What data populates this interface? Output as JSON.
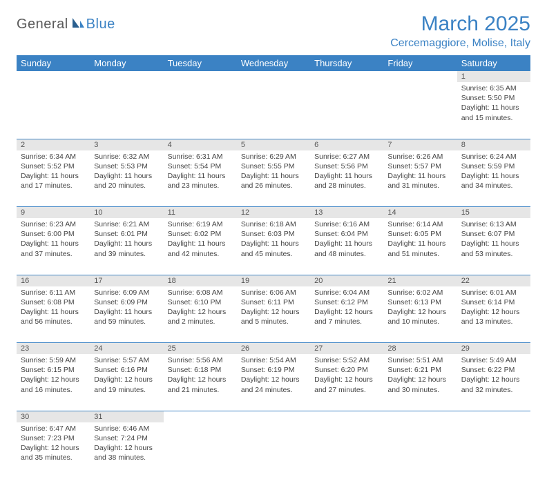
{
  "logo": {
    "text1": "General",
    "text2": "Blue"
  },
  "title": "March 2025",
  "location": "Cercemaggiore, Molise, Italy",
  "colors": {
    "accent": "#3b82c4",
    "header_bg": "#3b82c4",
    "header_text": "#ffffff",
    "daynum_bg": "#e6e6e6",
    "daynum_text": "#555555",
    "body_text": "#444444",
    "border": "#3b82c4",
    "background": "#ffffff"
  },
  "weekdays": [
    "Sunday",
    "Monday",
    "Tuesday",
    "Wednesday",
    "Thursday",
    "Friday",
    "Saturday"
  ],
  "weeks": [
    [
      null,
      null,
      null,
      null,
      null,
      null,
      {
        "n": "1",
        "sr": "Sunrise: 6:35 AM",
        "ss": "Sunset: 5:50 PM",
        "dl": "Daylight: 11 hours and 15 minutes."
      }
    ],
    [
      {
        "n": "2",
        "sr": "Sunrise: 6:34 AM",
        "ss": "Sunset: 5:52 PM",
        "dl": "Daylight: 11 hours and 17 minutes."
      },
      {
        "n": "3",
        "sr": "Sunrise: 6:32 AM",
        "ss": "Sunset: 5:53 PM",
        "dl": "Daylight: 11 hours and 20 minutes."
      },
      {
        "n": "4",
        "sr": "Sunrise: 6:31 AM",
        "ss": "Sunset: 5:54 PM",
        "dl": "Daylight: 11 hours and 23 minutes."
      },
      {
        "n": "5",
        "sr": "Sunrise: 6:29 AM",
        "ss": "Sunset: 5:55 PM",
        "dl": "Daylight: 11 hours and 26 minutes."
      },
      {
        "n": "6",
        "sr": "Sunrise: 6:27 AM",
        "ss": "Sunset: 5:56 PM",
        "dl": "Daylight: 11 hours and 28 minutes."
      },
      {
        "n": "7",
        "sr": "Sunrise: 6:26 AM",
        "ss": "Sunset: 5:57 PM",
        "dl": "Daylight: 11 hours and 31 minutes."
      },
      {
        "n": "8",
        "sr": "Sunrise: 6:24 AM",
        "ss": "Sunset: 5:59 PM",
        "dl": "Daylight: 11 hours and 34 minutes."
      }
    ],
    [
      {
        "n": "9",
        "sr": "Sunrise: 6:23 AM",
        "ss": "Sunset: 6:00 PM",
        "dl": "Daylight: 11 hours and 37 minutes."
      },
      {
        "n": "10",
        "sr": "Sunrise: 6:21 AM",
        "ss": "Sunset: 6:01 PM",
        "dl": "Daylight: 11 hours and 39 minutes."
      },
      {
        "n": "11",
        "sr": "Sunrise: 6:19 AM",
        "ss": "Sunset: 6:02 PM",
        "dl": "Daylight: 11 hours and 42 minutes."
      },
      {
        "n": "12",
        "sr": "Sunrise: 6:18 AM",
        "ss": "Sunset: 6:03 PM",
        "dl": "Daylight: 11 hours and 45 minutes."
      },
      {
        "n": "13",
        "sr": "Sunrise: 6:16 AM",
        "ss": "Sunset: 6:04 PM",
        "dl": "Daylight: 11 hours and 48 minutes."
      },
      {
        "n": "14",
        "sr": "Sunrise: 6:14 AM",
        "ss": "Sunset: 6:05 PM",
        "dl": "Daylight: 11 hours and 51 minutes."
      },
      {
        "n": "15",
        "sr": "Sunrise: 6:13 AM",
        "ss": "Sunset: 6:07 PM",
        "dl": "Daylight: 11 hours and 53 minutes."
      }
    ],
    [
      {
        "n": "16",
        "sr": "Sunrise: 6:11 AM",
        "ss": "Sunset: 6:08 PM",
        "dl": "Daylight: 11 hours and 56 minutes."
      },
      {
        "n": "17",
        "sr": "Sunrise: 6:09 AM",
        "ss": "Sunset: 6:09 PM",
        "dl": "Daylight: 11 hours and 59 minutes."
      },
      {
        "n": "18",
        "sr": "Sunrise: 6:08 AM",
        "ss": "Sunset: 6:10 PM",
        "dl": "Daylight: 12 hours and 2 minutes."
      },
      {
        "n": "19",
        "sr": "Sunrise: 6:06 AM",
        "ss": "Sunset: 6:11 PM",
        "dl": "Daylight: 12 hours and 5 minutes."
      },
      {
        "n": "20",
        "sr": "Sunrise: 6:04 AM",
        "ss": "Sunset: 6:12 PM",
        "dl": "Daylight: 12 hours and 7 minutes."
      },
      {
        "n": "21",
        "sr": "Sunrise: 6:02 AM",
        "ss": "Sunset: 6:13 PM",
        "dl": "Daylight: 12 hours and 10 minutes."
      },
      {
        "n": "22",
        "sr": "Sunrise: 6:01 AM",
        "ss": "Sunset: 6:14 PM",
        "dl": "Daylight: 12 hours and 13 minutes."
      }
    ],
    [
      {
        "n": "23",
        "sr": "Sunrise: 5:59 AM",
        "ss": "Sunset: 6:15 PM",
        "dl": "Daylight: 12 hours and 16 minutes."
      },
      {
        "n": "24",
        "sr": "Sunrise: 5:57 AM",
        "ss": "Sunset: 6:16 PM",
        "dl": "Daylight: 12 hours and 19 minutes."
      },
      {
        "n": "25",
        "sr": "Sunrise: 5:56 AM",
        "ss": "Sunset: 6:18 PM",
        "dl": "Daylight: 12 hours and 21 minutes."
      },
      {
        "n": "26",
        "sr": "Sunrise: 5:54 AM",
        "ss": "Sunset: 6:19 PM",
        "dl": "Daylight: 12 hours and 24 minutes."
      },
      {
        "n": "27",
        "sr": "Sunrise: 5:52 AM",
        "ss": "Sunset: 6:20 PM",
        "dl": "Daylight: 12 hours and 27 minutes."
      },
      {
        "n": "28",
        "sr": "Sunrise: 5:51 AM",
        "ss": "Sunset: 6:21 PM",
        "dl": "Daylight: 12 hours and 30 minutes."
      },
      {
        "n": "29",
        "sr": "Sunrise: 5:49 AM",
        "ss": "Sunset: 6:22 PM",
        "dl": "Daylight: 12 hours and 32 minutes."
      }
    ],
    [
      {
        "n": "30",
        "sr": "Sunrise: 6:47 AM",
        "ss": "Sunset: 7:23 PM",
        "dl": "Daylight: 12 hours and 35 minutes."
      },
      {
        "n": "31",
        "sr": "Sunrise: 6:46 AM",
        "ss": "Sunset: 7:24 PM",
        "dl": "Daylight: 12 hours and 38 minutes."
      },
      null,
      null,
      null,
      null,
      null
    ]
  ]
}
